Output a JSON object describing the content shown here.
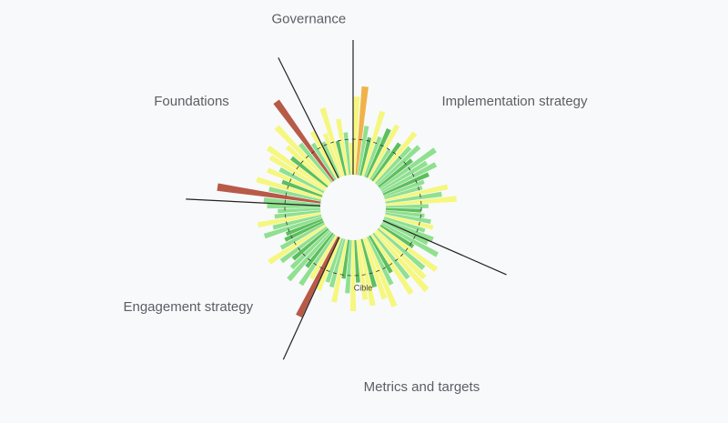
{
  "chart_data": {
    "type": "radial_bar",
    "rlim": [
      0,
      150
    ],
    "target": 50,
    "target_label": "Cible",
    "sectors": [
      {
        "name": "Implementation strategy",
        "values": [
          110,
          125,
          70,
          55,
          95,
          60,
          75,
          85,
          50,
          65,
          90,
          70,
          80,
          60,
          95,
          75,
          85,
          70,
          60,
          55,
          90,
          80,
          100,
          60,
          50,
          55,
          65,
          70,
          60,
          75
        ],
        "colors": [
          "#f5f77e",
          "#f0b24a",
          "#8fe08f",
          "#5cbf5c",
          "#f5f77e",
          "#8fe08f",
          "#5cbf5c",
          "#f5f77e",
          "#8fe08f",
          "#5cbf5c",
          "#f5f77e",
          "#8fe08f",
          "#8fe08f",
          "#5cbf5c",
          "#8fe08f",
          "#8fe08f",
          "#8fe08f",
          "#5cbf5c",
          "#8fe08f",
          "#8fe08f",
          "#f5f77e",
          "#8fe08f",
          "#f5f77e",
          "#8fe08f",
          "#5cbf5c",
          "#8fe08f",
          "#8fe08f",
          "#f5f77e",
          "#8fe08f",
          "#8fe08f"
        ]
      },
      {
        "name": "Metrics and targets",
        "values": [
          70,
          90,
          55,
          100,
          85,
          95,
          110,
          80,
          100,
          60,
          75,
          105,
          90,
          70,
          95,
          85,
          60,
          100,
          75,
          55,
          90,
          70,
          65,
          80
        ],
        "colors": [
          "#8fe08f",
          "#8fe08f",
          "#5cbf5c",
          "#f5f77e",
          "#8fe08f",
          "#f5f77e",
          "#f5f77e",
          "#8fe08f",
          "#f5f77e",
          "#5cbf5c",
          "#8fe08f",
          "#f5f77e",
          "#f5f77e",
          "#5cbf5c",
          "#f5f77e",
          "#f5f77e",
          "#5cbf5c",
          "#f5f77e",
          "#8fe08f",
          "#5cbf5c",
          "#f5f77e",
          "#8fe08f",
          "#8fe08f",
          "#f5f77e"
        ]
      },
      {
        "name": "Engagement strategy",
        "values": [
          125,
          70,
          85,
          60,
          90,
          75,
          65,
          80,
          95,
          70,
          60,
          55,
          85,
          70,
          90,
          65,
          60,
          75
        ],
        "colors": [
          "#b85a48",
          "#f5f77e",
          "#8fe08f",
          "#5cbf5c",
          "#8fe08f",
          "#8fe08f",
          "#5cbf5c",
          "#8fe08f",
          "#f5f77e",
          "#8fe08f",
          "#5cbf5c",
          "#5cbf5c",
          "#8fe08f",
          "#8fe08f",
          "#f5f77e",
          "#8fe08f",
          "#8fe08f",
          "#8fe08f"
        ]
      },
      {
        "name": "Foundations",
        "values": [
          80,
          147,
          75,
          95,
          60,
          85,
          70,
          90,
          100,
          65,
          80,
          110,
          70,
          138,
          60,
          75
        ],
        "colors": [
          "#8fe08f",
          "#b85a48",
          "#8fe08f",
          "#f5f77e",
          "#5cbf5c",
          "#f5f77e",
          "#8fe08f",
          "#f5f77e",
          "#f5f77e",
          "#5cbf5c",
          "#f5f77e",
          "#f5f77e",
          "#8fe08f",
          "#b85a48",
          "#8fe08f",
          "#f5f77e"
        ]
      },
      {
        "name": "Governance",
        "values": [
          55,
          65,
          100,
          50,
          80,
          60,
          45
        ],
        "colors": [
          "#8fe08f",
          "#f5f77e",
          "#f5f77e",
          "#5cbf5c",
          "#f5f77e",
          "#8fe08f",
          "#f5f77e"
        ]
      }
    ]
  }
}
